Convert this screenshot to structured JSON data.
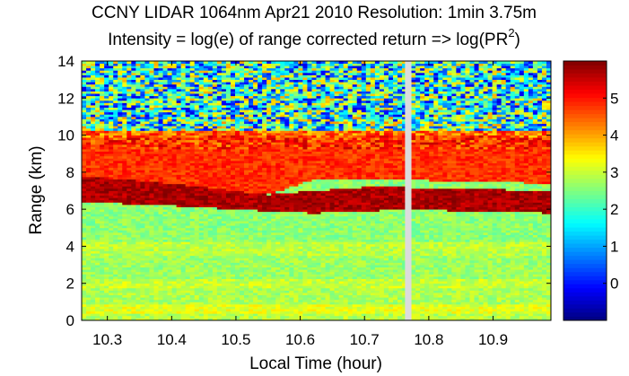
{
  "chart_data": {
    "type": "heatmap",
    "title_line1": "CCNY LIDAR 1064nm Apr21 2010 Resolution: 1min 3.75m",
    "title_line2_prefix": "Intensity = log(e) of range corrected return => log(PR",
    "title_line2_sup": "2",
    "title_line2_suffix": ")",
    "xlabel": "Local Time  (hour)",
    "ylabel": "Range (km)",
    "xlim": [
      10.26,
      10.99
    ],
    "ylim": [
      0,
      14
    ],
    "xticks": [
      10.3,
      10.4,
      10.5,
      10.6,
      10.7,
      10.8,
      10.9
    ],
    "xtick_labels": [
      "10.3",
      "10.4",
      "10.5",
      "10.6",
      "10.7",
      "10.8",
      "10.9"
    ],
    "yticks": [
      0,
      2,
      4,
      6,
      8,
      10,
      12,
      14
    ],
    "ytick_labels": [
      "0",
      "2",
      "4",
      "6",
      "8",
      "10",
      "12",
      "14"
    ],
    "data_gap": [
      10.763,
      10.773
    ],
    "colormap": "jet",
    "clim": [
      -1,
      6
    ],
    "colorbar_ticks": [
      0,
      1,
      2,
      3,
      4,
      5
    ],
    "colorbar_tick_labels": [
      "0",
      "1",
      "2",
      "3",
      "4",
      "5"
    ],
    "bands": [
      {
        "range_km": [
          0,
          0.4
        ],
        "intensity": 2.9
      },
      {
        "range_km": [
          0.4,
          0.9
        ],
        "intensity": 3.2
      },
      {
        "range_km": [
          0.9,
          1.8
        ],
        "intensity": 2.8
      },
      {
        "range_km": [
          1.8,
          2.2
        ],
        "intensity": 3.0
      },
      {
        "range_km": [
          2.2,
          3.5
        ],
        "intensity": 2.7
      },
      {
        "range_km": [
          3.5,
          4.2
        ],
        "intensity": 2.9
      },
      {
        "range_km": [
          4.2,
          6.0
        ],
        "intensity": 2.6
      },
      {
        "range_km": [
          9.2,
          10.2
        ],
        "intensity": 4.4
      },
      {
        "range_km": [
          10.2,
          11.0
        ],
        "intensity": 2.0
      },
      {
        "range_km": [
          11.0,
          14.0
        ],
        "intensity": 1.8
      }
    ],
    "layers": [
      {
        "name": "aerosol-layer-lower",
        "time": [
          10.26,
          10.4,
          10.55,
          10.62,
          10.7,
          10.76,
          10.99
        ],
        "bottom_km": [
          6.4,
          6.2,
          5.9,
          5.8,
          5.9,
          6.0,
          5.8
        ],
        "top_km": [
          7.8,
          7.4,
          6.8,
          7.0,
          7.2,
          7.2,
          7.0
        ],
        "intensity": 5.7
      },
      {
        "name": "aerosol-layer-upper",
        "time": [
          10.26,
          10.4,
          10.55,
          10.62,
          10.7,
          10.76,
          10.99
        ],
        "bottom_km": [
          7.8,
          7.4,
          6.8,
          7.6,
          7.6,
          7.6,
          7.4
        ],
        "top_km": [
          9.8,
          9.9,
          10.0,
          9.9,
          10.0,
          10.0,
          9.9
        ],
        "intensity": 4.8
      }
    ]
  }
}
